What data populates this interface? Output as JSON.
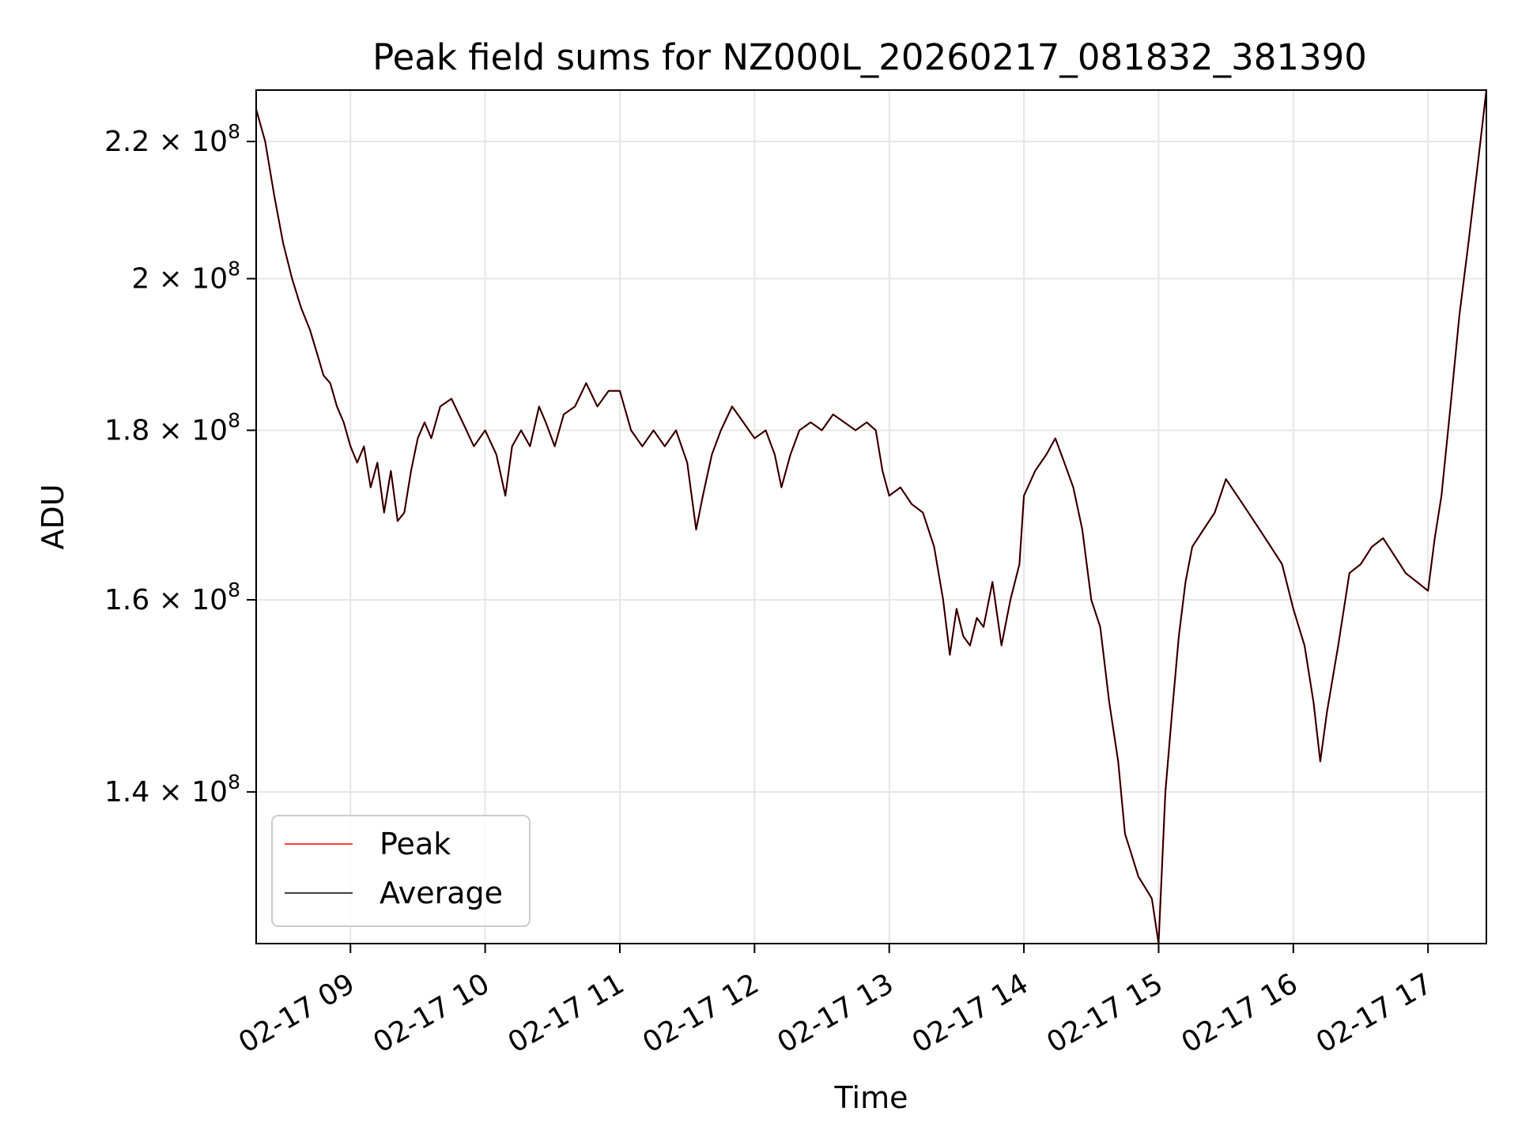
{
  "chart_data": {
    "type": "line",
    "title": "Peak field sums for NZ000L_20260217_081832_381390",
    "xlabel": "Time",
    "ylabel": "ADU",
    "y_scale": "log",
    "grid": true,
    "legend_position": "lower-left",
    "xlim": [
      "2026-02-17 08:18",
      "2026-02-17 17:26"
    ],
    "ylim": [
      126000000,
      228000000
    ],
    "x_ticks": [
      "2026-02-17 09:00",
      "2026-02-17 10:00",
      "2026-02-17 11:00",
      "2026-02-17 12:00",
      "2026-02-17 13:00",
      "2026-02-17 14:00",
      "2026-02-17 15:00",
      "2026-02-17 16:00",
      "2026-02-17 17:00"
    ],
    "x_tick_labels": [
      "02-17 09",
      "02-17 10",
      "02-17 11",
      "02-17 12",
      "02-17 13",
      "02-17 14",
      "02-17 15",
      "02-17 16",
      "02-17 17"
    ],
    "y_ticks": [
      {
        "value": 220000000,
        "mantissa": "2.2",
        "exponent": "8"
      },
      {
        "value": 200000000,
        "mantissa": "2",
        "exponent": "8"
      },
      {
        "value": 180000000,
        "mantissa": "1.8",
        "exponent": "8"
      },
      {
        "value": 160000000,
        "mantissa": "1.6",
        "exponent": "8"
      },
      {
        "value": 140000000,
        "mantissa": "1.4",
        "exponent": "8"
      }
    ],
    "y_tick_times_sign": "×",
    "y_tick_base": "10",
    "x": [
      "2026-02-17 08:18",
      "2026-02-17 08:22",
      "2026-02-17 08:26",
      "2026-02-17 08:30",
      "2026-02-17 08:34",
      "2026-02-17 08:38",
      "2026-02-17 08:42",
      "2026-02-17 08:46",
      "2026-02-17 08:48",
      "2026-02-17 08:51",
      "2026-02-17 08:54",
      "2026-02-17 08:57",
      "2026-02-17 09:00",
      "2026-02-17 09:03",
      "2026-02-17 09:06",
      "2026-02-17 09:09",
      "2026-02-17 09:12",
      "2026-02-17 09:15",
      "2026-02-17 09:18",
      "2026-02-17 09:21",
      "2026-02-17 09:24",
      "2026-02-17 09:27",
      "2026-02-17 09:30",
      "2026-02-17 09:33",
      "2026-02-17 09:36",
      "2026-02-17 09:40",
      "2026-02-17 09:45",
      "2026-02-17 09:50",
      "2026-02-17 09:55",
      "2026-02-17 10:00",
      "2026-02-17 10:05",
      "2026-02-17 10:09",
      "2026-02-17 10:12",
      "2026-02-17 10:16",
      "2026-02-17 10:20",
      "2026-02-17 10:24",
      "2026-02-17 10:27",
      "2026-02-17 10:31",
      "2026-02-17 10:35",
      "2026-02-17 10:40",
      "2026-02-17 10:45",
      "2026-02-17 10:50",
      "2026-02-17 10:55",
      "2026-02-17 11:00",
      "2026-02-17 11:05",
      "2026-02-17 11:10",
      "2026-02-17 11:15",
      "2026-02-17 11:20",
      "2026-02-17 11:25",
      "2026-02-17 11:30",
      "2026-02-17 11:34",
      "2026-02-17 11:37",
      "2026-02-17 11:41",
      "2026-02-17 11:45",
      "2026-02-17 11:50",
      "2026-02-17 11:55",
      "2026-02-17 12:00",
      "2026-02-17 12:05",
      "2026-02-17 12:09",
      "2026-02-17 12:12",
      "2026-02-17 12:16",
      "2026-02-17 12:20",
      "2026-02-17 12:25",
      "2026-02-17 12:30",
      "2026-02-17 12:35",
      "2026-02-17 12:40",
      "2026-02-17 12:45",
      "2026-02-17 12:50",
      "2026-02-17 12:54",
      "2026-02-17 12:57",
      "2026-02-17 13:00",
      "2026-02-17 13:05",
      "2026-02-17 13:10",
      "2026-02-17 13:15",
      "2026-02-17 13:20",
      "2026-02-17 13:24",
      "2026-02-17 13:27",
      "2026-02-17 13:30",
      "2026-02-17 13:33",
      "2026-02-17 13:36",
      "2026-02-17 13:39",
      "2026-02-17 13:42",
      "2026-02-17 13:46",
      "2026-02-17 13:50",
      "2026-02-17 13:54",
      "2026-02-17 13:58",
      "2026-02-17 14:00",
      "2026-02-17 14:05",
      "2026-02-17 14:10",
      "2026-02-17 14:14",
      "2026-02-17 14:18",
      "2026-02-17 14:22",
      "2026-02-17 14:26",
      "2026-02-17 14:30",
      "2026-02-17 14:34",
      "2026-02-17 14:38",
      "2026-02-17 14:42",
      "2026-02-17 14:45",
      "2026-02-17 14:48",
      "2026-02-17 14:51",
      "2026-02-17 14:54",
      "2026-02-17 14:57",
      "2026-02-17 15:00",
      "2026-02-17 15:03",
      "2026-02-17 15:06",
      "2026-02-17 15:09",
      "2026-02-17 15:12",
      "2026-02-17 15:15",
      "2026-02-17 15:20",
      "2026-02-17 15:25",
      "2026-02-17 15:30",
      "2026-02-17 15:35",
      "2026-02-17 15:40",
      "2026-02-17 15:45",
      "2026-02-17 15:50",
      "2026-02-17 15:55",
      "2026-02-17 16:00",
      "2026-02-17 16:05",
      "2026-02-17 16:09",
      "2026-02-17 16:12",
      "2026-02-17 16:15",
      "2026-02-17 16:20",
      "2026-02-17 16:25",
      "2026-02-17 16:30",
      "2026-02-17 16:35",
      "2026-02-17 16:40",
      "2026-02-17 16:45",
      "2026-02-17 16:50",
      "2026-02-17 16:55",
      "2026-02-17 17:00",
      "2026-02-17 17:03",
      "2026-02-17 17:06",
      "2026-02-17 17:10",
      "2026-02-17 17:14",
      "2026-02-17 17:18",
      "2026-02-17 17:22",
      "2026-02-17 17:26"
    ],
    "series": [
      {
        "name": "Peak",
        "color": "#ff0000",
        "values": [
          225000000,
          220000000,
          212000000,
          205000000,
          200000000,
          196000000,
          193000000,
          189000000,
          187000000,
          186000000,
          183000000,
          181000000,
          178000000,
          176000000,
          178000000,
          173000000,
          176000000,
          170000000,
          175000000,
          169000000,
          170000000,
          175000000,
          179000000,
          181000000,
          179000000,
          183000000,
          184000000,
          181000000,
          178000000,
          180000000,
          177000000,
          172000000,
          178000000,
          180000000,
          178000000,
          183000000,
          181000000,
          178000000,
          182000000,
          183000000,
          186000000,
          183000000,
          185000000,
          185000000,
          180000000,
          178000000,
          180000000,
          178000000,
          180000000,
          176000000,
          168000000,
          172000000,
          177000000,
          180000000,
          183000000,
          181000000,
          179000000,
          180000000,
          177000000,
          173000000,
          177000000,
          180000000,
          181000000,
          180000000,
          182000000,
          181000000,
          180000000,
          181000000,
          180000000,
          175000000,
          172000000,
          173000000,
          171000000,
          170000000,
          166000000,
          160000000,
          154000000,
          159000000,
          156000000,
          155000000,
          158000000,
          157000000,
          162000000,
          155000000,
          160000000,
          164000000,
          172000000,
          175000000,
          177000000,
          179000000,
          176000000,
          173000000,
          168000000,
          160000000,
          157000000,
          149000000,
          143000000,
          136000000,
          134000000,
          132000000,
          131000000,
          130000000,
          125000000,
          140000000,
          148000000,
          156000000,
          162000000,
          166000000,
          168000000,
          170000000,
          174000000,
          172000000,
          170000000,
          168000000,
          166000000,
          164000000,
          159000000,
          155000000,
          149000000,
          143000000,
          148000000,
          155000000,
          163000000,
          164000000,
          166000000,
          167000000,
          165000000,
          163000000,
          162000000,
          161000000,
          167000000,
          172000000,
          183000000,
          195000000,
          205000000,
          216000000,
          228000000
        ]
      },
      {
        "name": "Average",
        "color": "#000000",
        "values": [
          225000000,
          220000000,
          212000000,
          205000000,
          200000000,
          196000000,
          193000000,
          189000000,
          187000000,
          186000000,
          183000000,
          181000000,
          178000000,
          176000000,
          178000000,
          173000000,
          176000000,
          170000000,
          175000000,
          169000000,
          170000000,
          175000000,
          179000000,
          181000000,
          179000000,
          183000000,
          184000000,
          181000000,
          178000000,
          180000000,
          177000000,
          172000000,
          178000000,
          180000000,
          178000000,
          183000000,
          181000000,
          178000000,
          182000000,
          183000000,
          186000000,
          183000000,
          185000000,
          185000000,
          180000000,
          178000000,
          180000000,
          178000000,
          180000000,
          176000000,
          168000000,
          172000000,
          177000000,
          180000000,
          183000000,
          181000000,
          179000000,
          180000000,
          177000000,
          173000000,
          177000000,
          180000000,
          181000000,
          180000000,
          182000000,
          181000000,
          180000000,
          181000000,
          180000000,
          175000000,
          172000000,
          173000000,
          171000000,
          170000000,
          166000000,
          160000000,
          154000000,
          159000000,
          156000000,
          155000000,
          158000000,
          157000000,
          162000000,
          155000000,
          160000000,
          164000000,
          172000000,
          175000000,
          177000000,
          179000000,
          176000000,
          173000000,
          168000000,
          160000000,
          157000000,
          149000000,
          143000000,
          136000000,
          134000000,
          132000000,
          131000000,
          130000000,
          125000000,
          140000000,
          148000000,
          156000000,
          162000000,
          166000000,
          168000000,
          170000000,
          174000000,
          172000000,
          170000000,
          168000000,
          166000000,
          164000000,
          159000000,
          155000000,
          149000000,
          143000000,
          148000000,
          155000000,
          163000000,
          164000000,
          166000000,
          167000000,
          165000000,
          163000000,
          162000000,
          161000000,
          167000000,
          172000000,
          183000000,
          195000000,
          205000000,
          216000000,
          228000000
        ]
      }
    ]
  }
}
